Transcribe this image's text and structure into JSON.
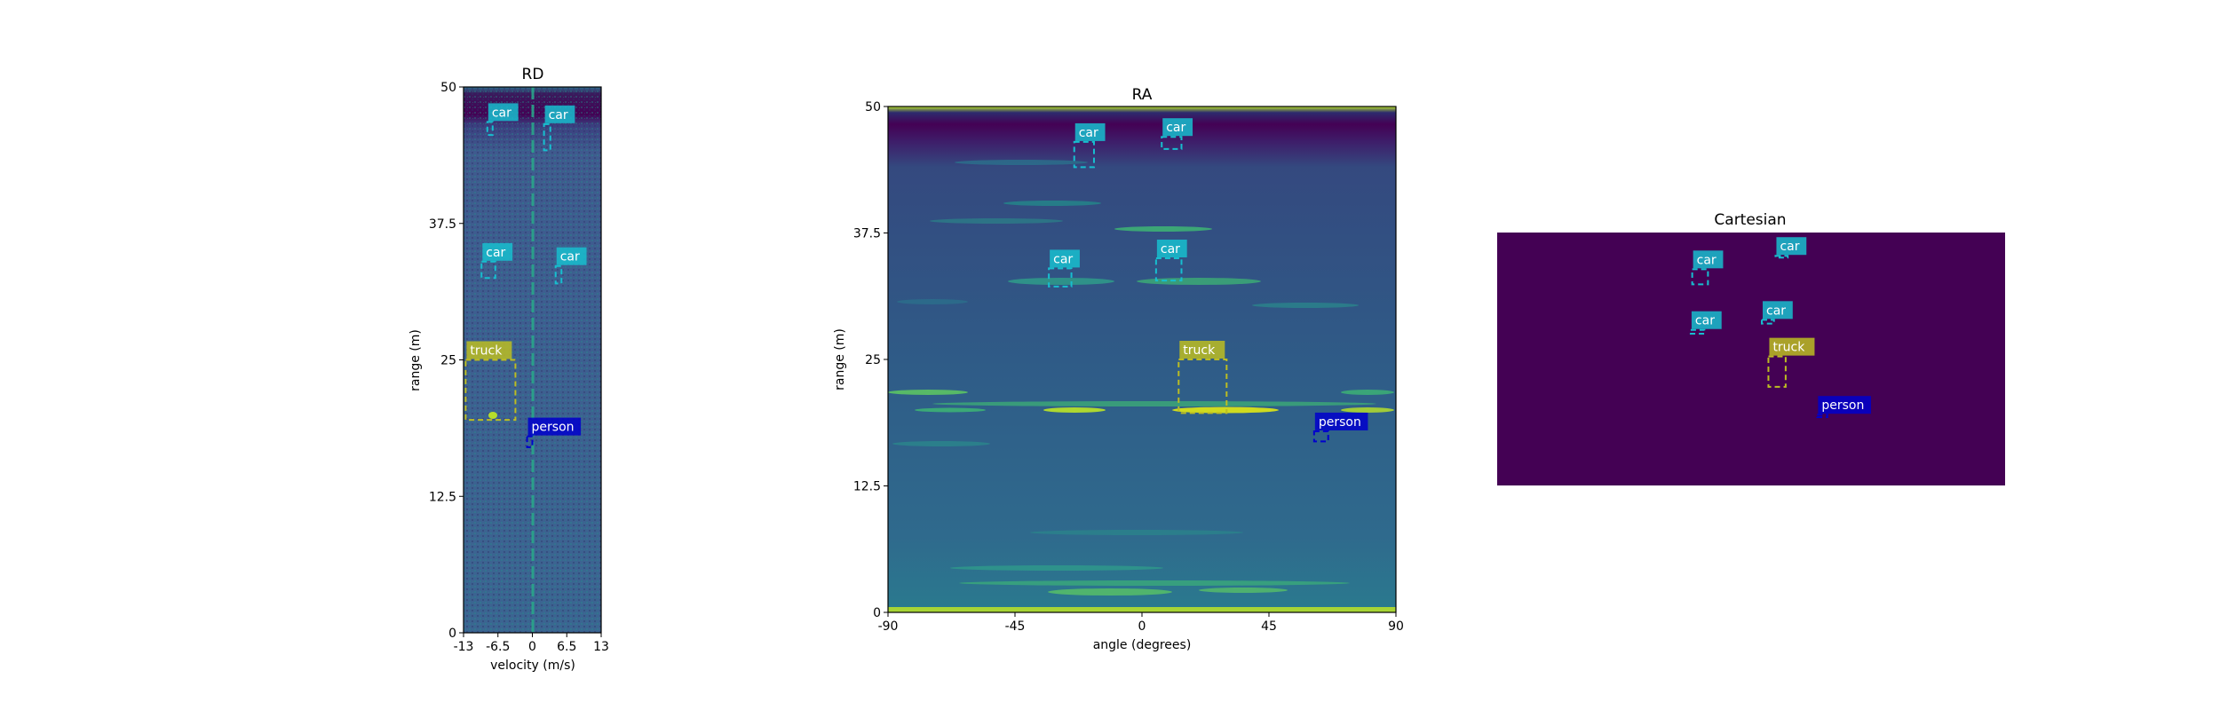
{
  "colors": {
    "car": "#17becf",
    "truck": "#bcbd22",
    "person": "#0000cd",
    "viridis_dark": "#440154",
    "viridis_mid": "#3b528b",
    "viridis_green": "#21918c",
    "viridis_bright": "#b5de2b",
    "viridis_yellow": "#fde725"
  },
  "chart_data": [
    {
      "type": "heatmap",
      "title": "RD",
      "xlabel": "velocity (m/s)",
      "ylabel": "range (m)",
      "xlim": [
        -13,
        13
      ],
      "ylim": [
        0,
        50
      ],
      "xticks": [
        "-13",
        "-6.5",
        "0",
        "6.5",
        "13"
      ],
      "yticks": [
        "0",
        "12.5",
        "25",
        "37.5",
        "50"
      ],
      "detections": [
        {
          "label": "car",
          "x": [
            -8.5,
            -7.5
          ],
          "y": [
            45.6,
            46.8
          ]
        },
        {
          "label": "car",
          "x": [
            2.2,
            3.4
          ],
          "y": [
            44.2,
            46.6
          ]
        },
        {
          "label": "car",
          "x": [
            -9.6,
            -7.0
          ],
          "y": [
            32.5,
            34.0
          ]
        },
        {
          "label": "car",
          "x": [
            4.4,
            5.5
          ],
          "y": [
            32.0,
            33.6
          ]
        },
        {
          "label": "truck",
          "x": [
            -12.6,
            -3.2
          ],
          "y": [
            19.5,
            25.0
          ]
        },
        {
          "label": "person",
          "x": [
            -1.0,
            0.0
          ],
          "y": [
            17.0,
            18.0
          ]
        }
      ]
    },
    {
      "type": "heatmap",
      "title": "RA",
      "xlabel": "angle (degrees)",
      "ylabel": "range (m)",
      "xlim": [
        -90,
        90
      ],
      "ylim": [
        0,
        50
      ],
      "xticks": [
        "-90",
        "-45",
        "0",
        "45",
        "90"
      ],
      "yticks": [
        "0",
        "12.5",
        "25",
        "37.5",
        "50"
      ],
      "detections": [
        {
          "label": "car",
          "x": [
            -24,
            -17
          ],
          "y": [
            44.0,
            46.5
          ]
        },
        {
          "label": "car",
          "x": [
            7,
            14
          ],
          "y": [
            45.8,
            47.0
          ]
        },
        {
          "label": "car",
          "x": [
            -33,
            -25
          ],
          "y": [
            32.2,
            34.0
          ]
        },
        {
          "label": "car",
          "x": [
            5,
            14
          ],
          "y": [
            32.8,
            35.0
          ]
        },
        {
          "label": "truck",
          "x": [
            13,
            30
          ],
          "y": [
            19.7,
            25.0
          ]
        },
        {
          "label": "person",
          "x": [
            61,
            66
          ],
          "y": [
            16.9,
            17.9
          ]
        }
      ]
    },
    {
      "type": "heatmap",
      "title": "Cartesian",
      "detections": [
        {
          "label": "car",
          "x": [
            0.384,
            0.415
          ],
          "y": [
            0.145,
            0.205
          ]
        },
        {
          "label": "car",
          "x": [
            0.548,
            0.572
          ],
          "y": [
            0.092,
            0.098
          ]
        },
        {
          "label": "car",
          "x": [
            0.381,
            0.408
          ],
          "y": [
            0.385,
            0.4
          ]
        },
        {
          "label": "car",
          "x": [
            0.521,
            0.545
          ],
          "y": [
            0.345,
            0.36
          ]
        },
        {
          "label": "truck",
          "x": [
            0.534,
            0.568
          ],
          "y": [
            0.49,
            0.61
          ]
        },
        {
          "label": "person",
          "x": [
            0.63,
            0.65
          ],
          "y": [
            0.72,
            0.73
          ]
        }
      ]
    }
  ]
}
